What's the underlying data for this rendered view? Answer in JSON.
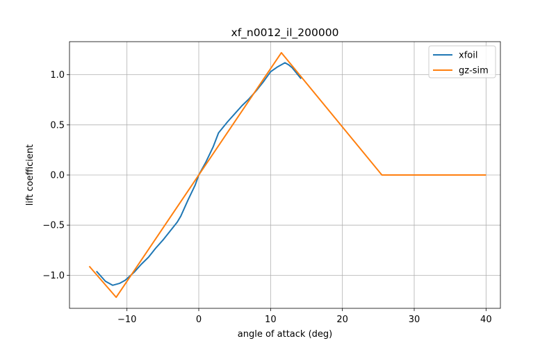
{
  "chart_data": {
    "type": "line",
    "title": "xf_n0012_il_200000",
    "xlabel": "angle of attack (deg)",
    "ylabel": "lift coefficient",
    "xlim": [
      -18,
      42
    ],
    "ylim": [
      -1.33,
      1.33
    ],
    "xticks": [
      -10,
      0,
      10,
      20,
      30,
      40
    ],
    "xtick_labels": [
      "−10",
      "0",
      "10",
      "20",
      "30",
      "40"
    ],
    "yticks": [
      -1.0,
      -0.5,
      0.0,
      0.5,
      1.0
    ],
    "ytick_labels": [
      "−1.0",
      "−0.5",
      "0.0",
      "0.5",
      "1.0"
    ],
    "grid": true,
    "legend_position": "top-right",
    "series": [
      {
        "name": "xfoil",
        "color": "#1f77b4",
        "x": [
          -14.25,
          -13,
          -12,
          -11,
          -10.25,
          -9,
          -8,
          -7,
          -6,
          -5,
          -4,
          -3,
          -2.5,
          -1.5,
          -0.5,
          0,
          1,
          2,
          2.75,
          4,
          5,
          6,
          7,
          8,
          9,
          10,
          11,
          12,
          12.5,
          13,
          14.25
        ],
        "y": [
          -0.96,
          -1.06,
          -1.1,
          -1.08,
          -1.05,
          -0.97,
          -0.89,
          -0.82,
          -0.73,
          -0.65,
          -0.56,
          -0.47,
          -0.41,
          -0.25,
          -0.1,
          0.0,
          0.13,
          0.28,
          0.42,
          0.53,
          0.61,
          0.69,
          0.76,
          0.84,
          0.93,
          1.03,
          1.08,
          1.12,
          1.1,
          1.07,
          0.96
        ]
      },
      {
        "name": "gz-sim",
        "color": "#ff7f0e",
        "x": [
          -15.25,
          -11.5,
          11.5,
          25.5,
          40
        ],
        "y": [
          -0.91,
          -1.22,
          1.22,
          0.0,
          0.0
        ]
      }
    ]
  }
}
